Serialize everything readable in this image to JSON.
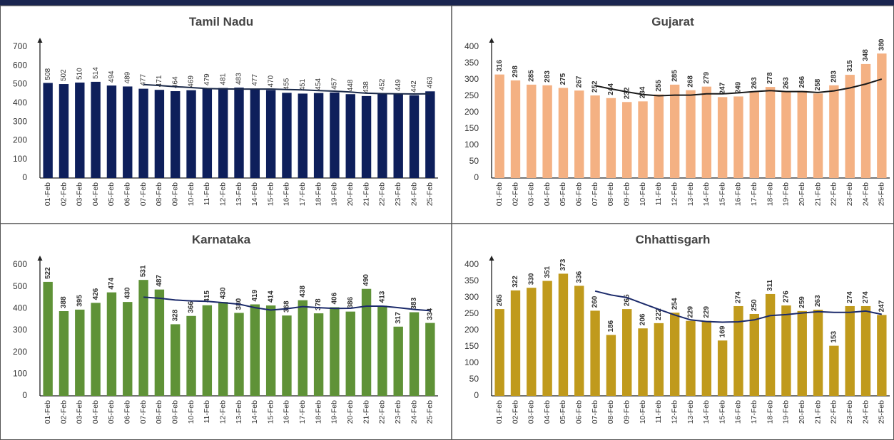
{
  "chart_data": [
    {
      "type": "bar",
      "title": "Tamil Nadu",
      "color": "#0e1f5b",
      "line_color": "#1b2a4a",
      "label_weight": "normal",
      "categories": [
        "01-Feb",
        "02-Feb",
        "03-Feb",
        "04-Feb",
        "05-Feb",
        "06-Feb",
        "07-Feb",
        "08-Feb",
        "09-Feb",
        "10-Feb",
        "11-Feb",
        "12-Feb",
        "13-Feb",
        "14-Feb",
        "15-Feb",
        "16-Feb",
        "17-Feb",
        "18-Feb",
        "19-Feb",
        "20-Feb",
        "21-Feb",
        "22-Feb",
        "23-Feb",
        "24-Feb",
        "25-Feb"
      ],
      "values": [
        508,
        502,
        510,
        514,
        494,
        489,
        477,
        471,
        464,
        469,
        479,
        481,
        483,
        477,
        470,
        455,
        451,
        454,
        457,
        448,
        438,
        452,
        449,
        442,
        463
      ],
      "trend_values": [
        null,
        null,
        null,
        null,
        null,
        null,
        499,
        494,
        488,
        483,
        478,
        476,
        475,
        475,
        475,
        473,
        471,
        467,
        464,
        459,
        453,
        451,
        450,
        449,
        450
      ],
      "ylim": [
        0,
        700
      ],
      "yticks": [
        0,
        100,
        200,
        300,
        400,
        500,
        600,
        700
      ]
    },
    {
      "type": "bar",
      "title": "Gujarat",
      "color": "#f4b183",
      "line_color": "#1a1a1a",
      "label_weight": "bold",
      "categories": [
        "01-Feb",
        "02-Feb",
        "03-Feb",
        "04-Feb",
        "05-Feb",
        "06-Feb",
        "07-Feb",
        "08-Feb",
        "09-Feb",
        "10-Feb",
        "11-Feb",
        "12-Feb",
        "13-Feb",
        "14-Feb",
        "15-Feb",
        "16-Feb",
        "17-Feb",
        "18-Feb",
        "19-Feb",
        "20-Feb",
        "21-Feb",
        "22-Feb",
        "23-Feb",
        "24-Feb",
        "25-Feb"
      ],
      "values": [
        316,
        298,
        285,
        283,
        275,
        267,
        252,
        244,
        232,
        234,
        255,
        285,
        268,
        279,
        247,
        249,
        263,
        278,
        263,
        266,
        258,
        283,
        315,
        348,
        380
      ],
      "trend_values": [
        null,
        null,
        null,
        null,
        null,
        null,
        282,
        272,
        263,
        255,
        251,
        253,
        253,
        257,
        257,
        260,
        264,
        267,
        264,
        264,
        261,
        266,
        275,
        287,
        302
      ],
      "ylim": [
        0,
        400
      ],
      "yticks": [
        0,
        50,
        100,
        150,
        200,
        250,
        300,
        350,
        400
      ]
    },
    {
      "type": "bar",
      "title": "Karnataka",
      "color": "#5f9237",
      "line_color": "#1b2a6a",
      "label_weight": "bold",
      "categories": [
        "01-Feb",
        "02-Feb",
        "03-Feb",
        "04-Feb",
        "05-Feb",
        "06-Feb",
        "07-Feb",
        "08-Feb",
        "09-Feb",
        "10-Feb",
        "11-Feb",
        "12-Feb",
        "13-Feb",
        "14-Feb",
        "15-Feb",
        "16-Feb",
        "17-Feb",
        "18-Feb",
        "19-Feb",
        "20-Feb",
        "21-Feb",
        "22-Feb",
        "23-Feb",
        "24-Feb",
        "25-Feb"
      ],
      "values": [
        522,
        388,
        395,
        426,
        474,
        430,
        531,
        487,
        328,
        366,
        415,
        430,
        380,
        419,
        414,
        368,
        438,
        378,
        406,
        386,
        490,
        413,
        317,
        383,
        334
      ],
      "trend_values": [
        null,
        null,
        null,
        null,
        null,
        null,
        452,
        447,
        439,
        435,
        433,
        427,
        420,
        404,
        393,
        399,
        409,
        404,
        400,
        401,
        411,
        411,
        404,
        396,
        390
      ],
      "ylim": [
        0,
        600
      ],
      "yticks": [
        0,
        100,
        200,
        300,
        400,
        500,
        600
      ]
    },
    {
      "type": "bar",
      "title": "Chhattisgarh",
      "color": "#c09a1c",
      "line_color": "#1b2a6a",
      "label_weight": "bold",
      "categories": [
        "01-Feb",
        "02-Feb",
        "03-Feb",
        "04-Feb",
        "05-Feb",
        "06-Feb",
        "07-Feb",
        "08-Feb",
        "09-Feb",
        "10-Feb",
        "11-Feb",
        "12-Feb",
        "13-Feb",
        "14-Feb",
        "15-Feb",
        "16-Feb",
        "17-Feb",
        "18-Feb",
        "19-Feb",
        "20-Feb",
        "21-Feb",
        "22-Feb",
        "23-Feb",
        "24-Feb",
        "25-Feb"
      ],
      "values": [
        265,
        322,
        330,
        351,
        373,
        336,
        260,
        186,
        265,
        206,
        222,
        254,
        229,
        229,
        169,
        274,
        250,
        311,
        276,
        259,
        263,
        153,
        274,
        274,
        247
      ],
      "trend_values": [
        null,
        null,
        null,
        null,
        null,
        null,
        320,
        308,
        300,
        282,
        264,
        247,
        232,
        227,
        225,
        226,
        232,
        245,
        248,
        253,
        257,
        255,
        255,
        259,
        249
      ],
      "ylim": [
        0,
        400
      ],
      "yticks": [
        0,
        50,
        100,
        150,
        200,
        250,
        300,
        350,
        400
      ]
    }
  ]
}
